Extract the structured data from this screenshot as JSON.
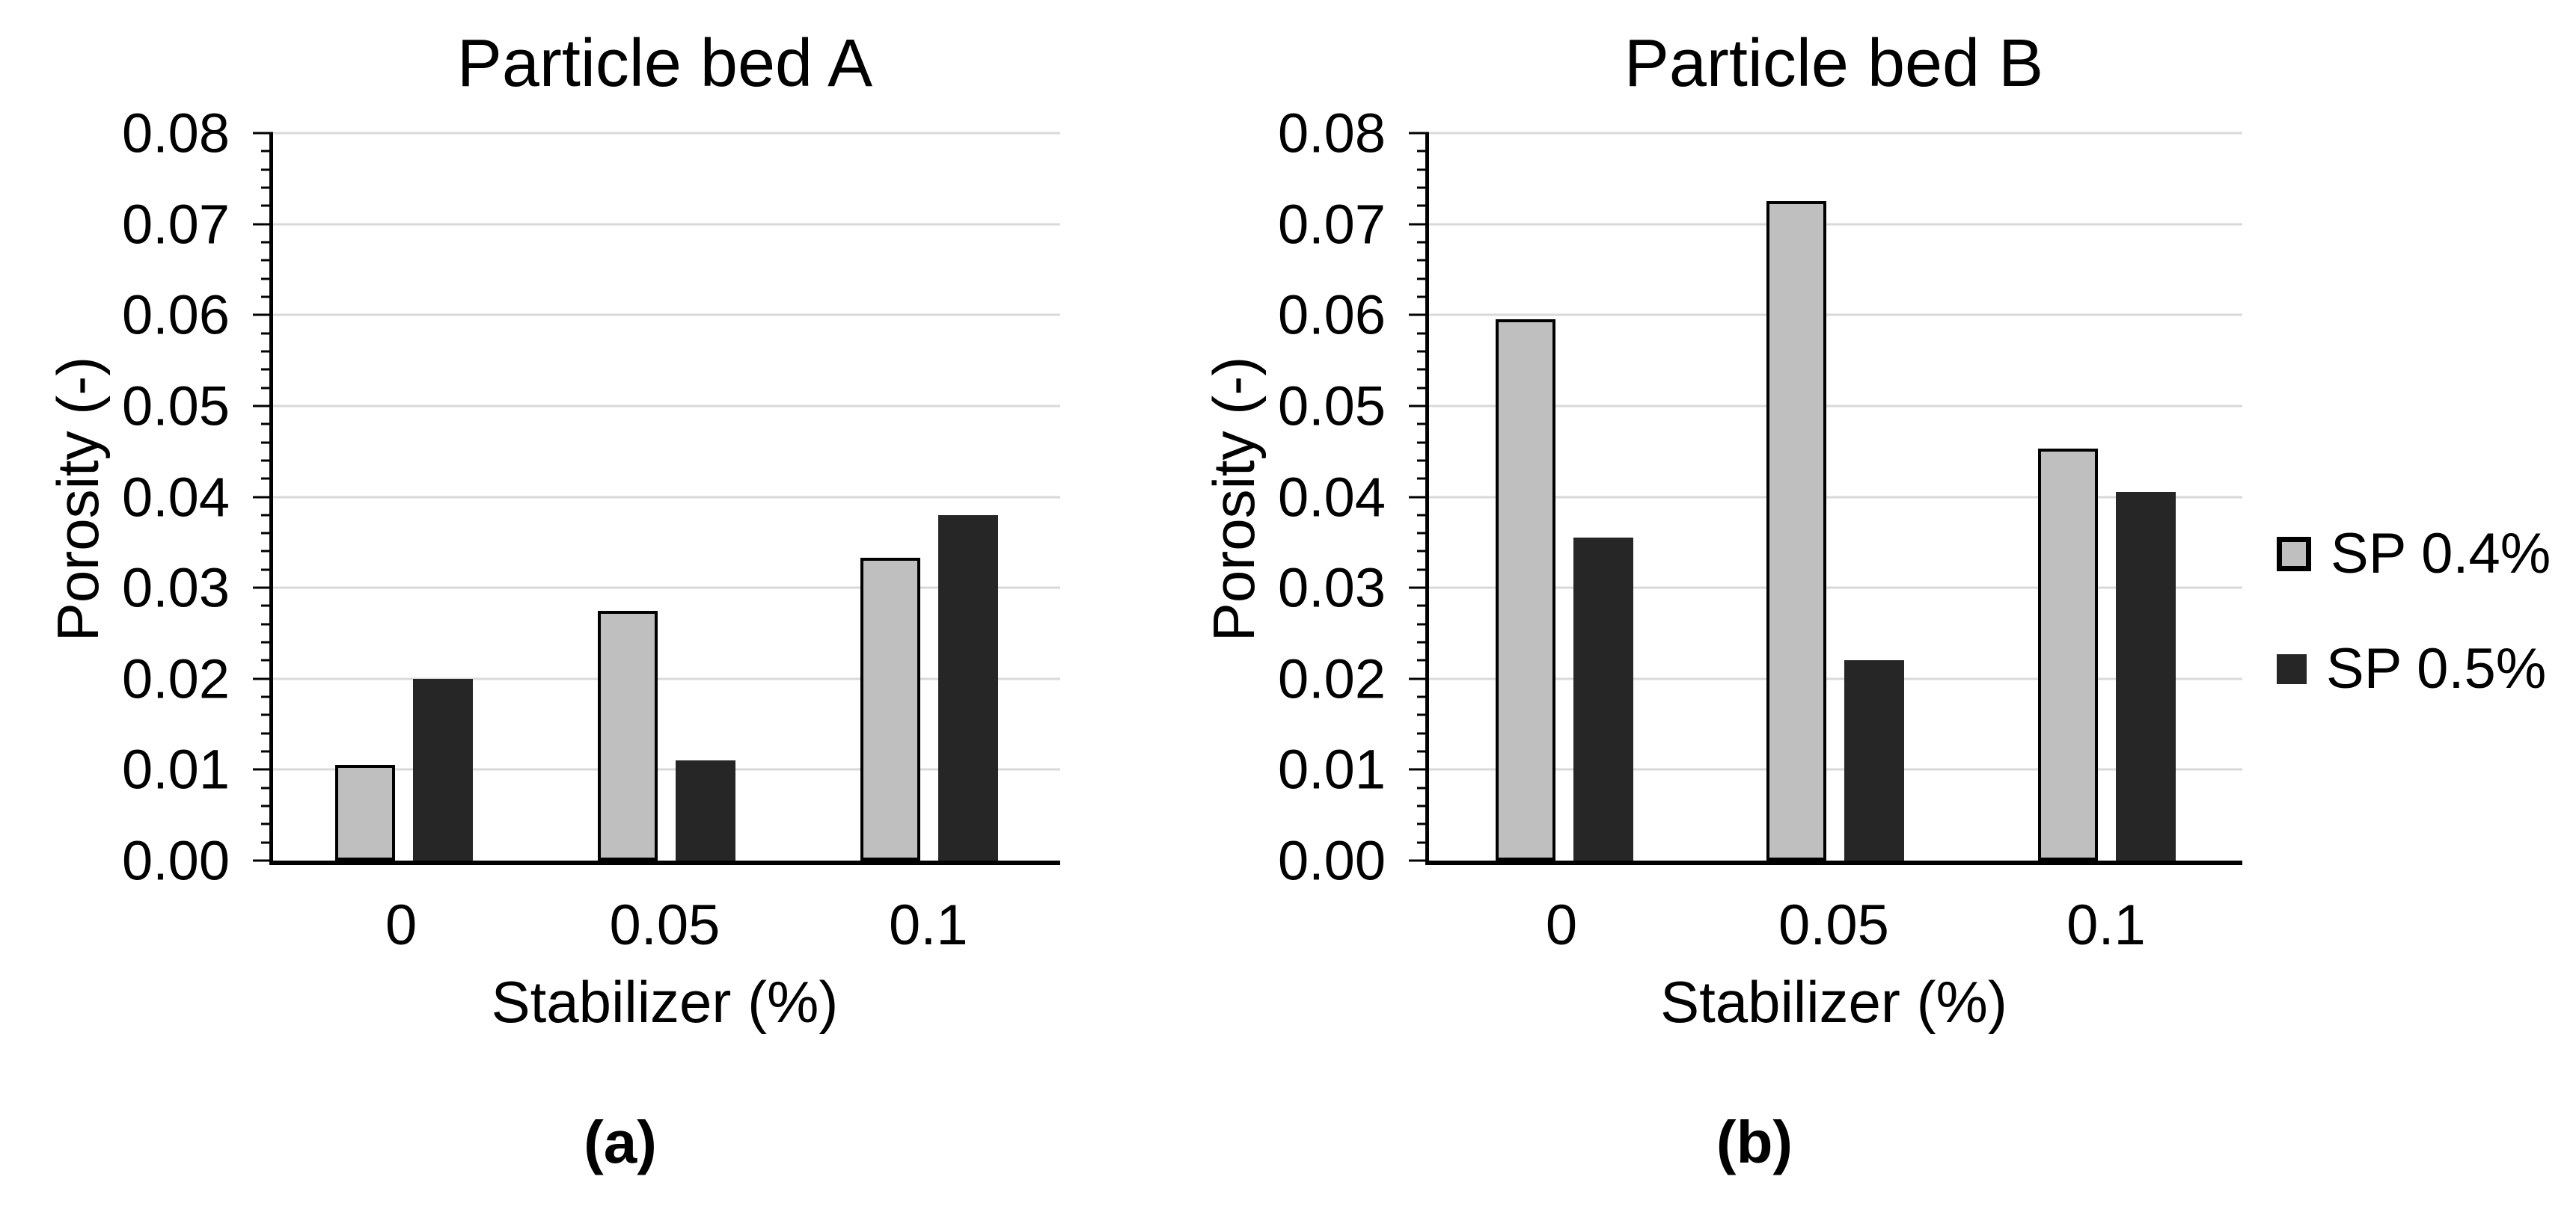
{
  "background_color": "#ffffff",
  "chart_data": [
    {
      "type": "bar",
      "title": "Particle bed A",
      "panel_label": "(a)",
      "xlabel": "Stabilizer (%)",
      "ylabel": "Porosity (-)",
      "categories": [
        "0",
        "0.05",
        "0.1"
      ],
      "series": [
        {
          "name": "SP 0.4%",
          "fill": "#bfbfbf",
          "border": "#000000",
          "values": [
            0.0105,
            0.0275,
            0.0333
          ]
        },
        {
          "name": "SP 0.5%",
          "fill": "#262626",
          "border": "#262626",
          "values": [
            0.02,
            0.011,
            0.038
          ]
        }
      ],
      "ylim": [
        0,
        0.08
      ],
      "y_major_step": 0.01,
      "y_minor_step": 0.002,
      "y_tick_decimals": 2,
      "grid": true,
      "gridline_color": "#d9d9d9",
      "axis_color": "#000000",
      "legend_position": "none"
    },
    {
      "type": "bar",
      "title": "Particle bed B",
      "panel_label": "(b)",
      "xlabel": "Stabilizer (%)",
      "ylabel": "Porosity (-)",
      "categories": [
        "0",
        "0.05",
        "0.1"
      ],
      "series": [
        {
          "name": "SP 0.4%",
          "fill": "#bfbfbf",
          "border": "#000000",
          "values": [
            0.0595,
            0.0725,
            0.0453
          ]
        },
        {
          "name": "SP 0.5%",
          "fill": "#262626",
          "border": "#262626",
          "values": [
            0.0355,
            0.022,
            0.0405
          ]
        }
      ],
      "ylim": [
        0,
        0.08
      ],
      "y_major_step": 0.01,
      "y_minor_step": 0.002,
      "y_tick_decimals": 2,
      "grid": true,
      "gridline_color": "#d9d9d9",
      "axis_color": "#000000",
      "legend_position": "right"
    }
  ],
  "legend": {
    "position": "right-of-chart-b",
    "items": [
      {
        "label": "SP 0.4%",
        "fill": "#bfbfbf",
        "border": "#000000"
      },
      {
        "label": "SP 0.5%",
        "fill": "#262626",
        "border": "#262626"
      }
    ]
  }
}
